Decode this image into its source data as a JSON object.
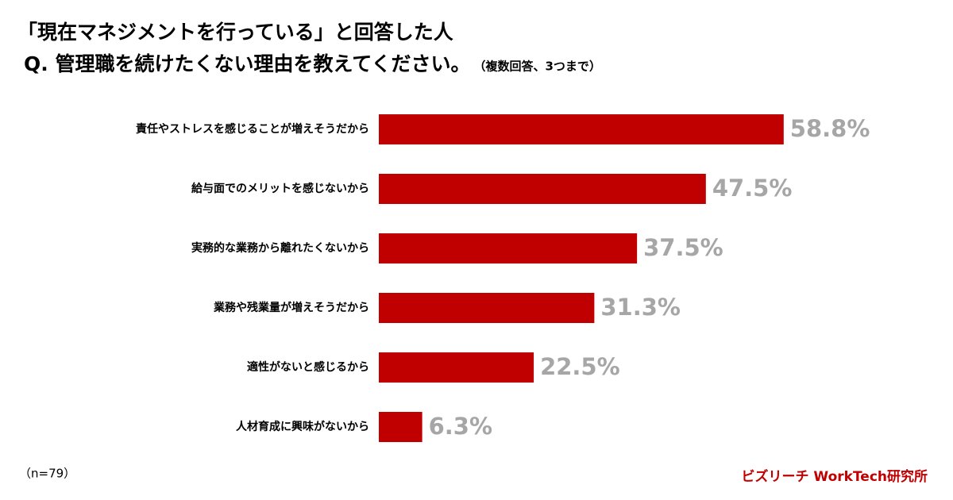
{
  "chart_data": {
    "type": "bar",
    "orientation": "horizontal",
    "title": "「現在マネジメントを行っている」と回答した人",
    "subtitle": "Q. 管理職を続けたくない理由を教えてください。",
    "annotation": "（複数回答、3つまで）",
    "categories": [
      "責任やストレスを感じることが増えそうだから",
      "給与面でのメリットを感じないから",
      "実務的な業務から離れたくないから",
      "業務や残業量が増えそうだから",
      "適性がないと感じるから",
      "人材育成に興味がないから"
    ],
    "values": [
      58.8,
      47.5,
      37.5,
      31.3,
      22.5,
      6.3
    ],
    "value_labels": [
      "58.8%",
      "47.5%",
      "37.5%",
      "31.3%",
      "22.5%",
      "6.3%"
    ],
    "color": "#c00000",
    "note": "（n=79）",
    "source": "ビズリーチ WorkTech研究所"
  }
}
